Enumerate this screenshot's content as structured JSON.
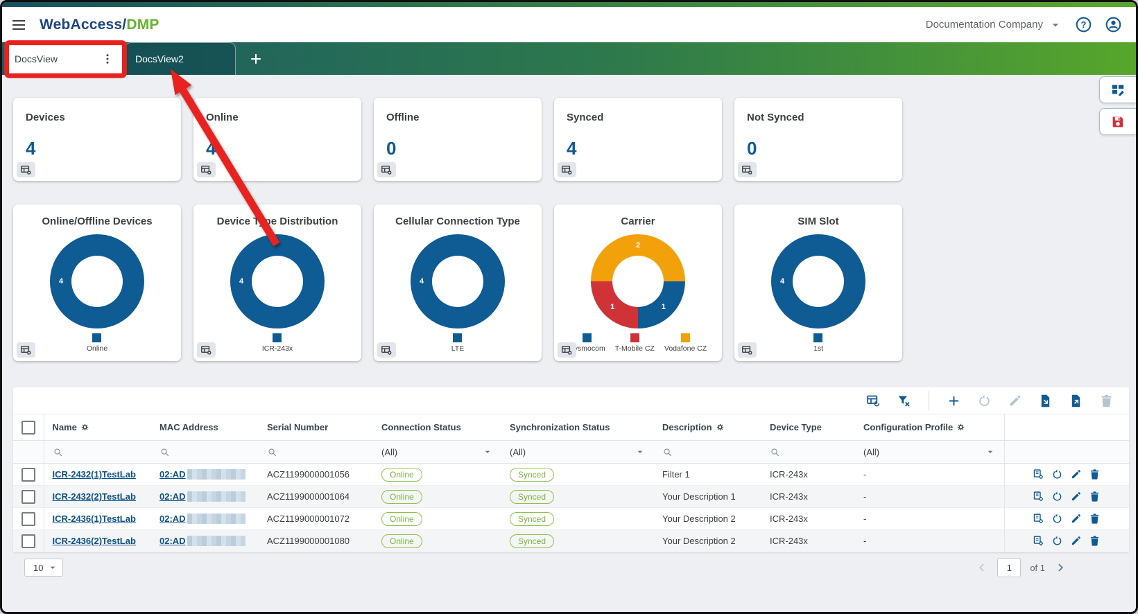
{
  "header": {
    "brand_blue": "WebAccess/",
    "brand_green": "DMP",
    "company": "Documentation Company"
  },
  "tabs": [
    {
      "label": "DocsView"
    },
    {
      "label": "DocsView2"
    }
  ],
  "side_buttons": {
    "edit_dashboard_icon": "dashboard-edit",
    "save_dashboard_icon": "save-floppy"
  },
  "colors": {
    "accent_blue": "#0f5b94",
    "status_green": "#7cb342",
    "annotation_red": "#e8221f",
    "carrier_red": "#cf3338",
    "carrier_orange": "#f2a10b"
  },
  "stats": [
    {
      "label": "Devices",
      "value": "4"
    },
    {
      "label": "Online",
      "value": "4"
    },
    {
      "label": "Offline",
      "value": "0"
    },
    {
      "label": "Synced",
      "value": "4"
    },
    {
      "label": "Not Synced",
      "value": "0"
    }
  ],
  "charts": [
    {
      "type": "donut",
      "title": "Online/Offline Devices",
      "segments": [
        {
          "label": "Online",
          "value": 4,
          "color": "#0f5b94",
          "label_angle": 270
        }
      ]
    },
    {
      "type": "donut",
      "title": "Device Type Distribution",
      "segments": [
        {
          "label": "ICR-243x",
          "value": 4,
          "color": "#0f5b94",
          "label_angle": 270
        }
      ]
    },
    {
      "type": "donut",
      "title": "Cellular Connection Type",
      "segments": [
        {
          "label": "LTE",
          "value": 4,
          "color": "#0f5b94",
          "label_angle": 270
        }
      ]
    },
    {
      "type": "donut",
      "title": "Carrier",
      "start_deg": 270,
      "draw_order": [
        2,
        0,
        1
      ],
      "segments": [
        {
          "label": "Sysmocom",
          "value": 1,
          "color": "#0f5b94",
          "label_angle": 135
        },
        {
          "label": "T-Mobile CZ",
          "value": 1,
          "color": "#cf3338",
          "label_angle": 225
        },
        {
          "label": "Vodafone CZ",
          "value": 2,
          "color": "#f2a10b",
          "label_angle": 0
        }
      ]
    },
    {
      "type": "donut",
      "title": "SIM Slot",
      "segments": [
        {
          "label": "1st",
          "value": 4,
          "color": "#0f5b94",
          "label_angle": 270
        }
      ]
    }
  ],
  "table": {
    "toolbar_icons": [
      "table-refresh",
      "filter-clear",
      "add",
      "refresh",
      "edit",
      "import-file",
      "export-file",
      "delete"
    ],
    "filter_all": "(All)",
    "columns": [
      {
        "label": "Name",
        "gear": true
      },
      {
        "label": "MAC Address"
      },
      {
        "label": "Serial Number"
      },
      {
        "label": "Connection Status"
      },
      {
        "label": "Synchronization Status"
      },
      {
        "label": "Description",
        "gear": true
      },
      {
        "label": "Device Type"
      },
      {
        "label": "Configuration Profile",
        "gear": true
      }
    ],
    "row_action_icons": [
      "device-config",
      "restart",
      "edit",
      "delete"
    ],
    "rows": [
      {
        "name": "ICR-2432(1)TestLab",
        "mac_prefix": "02:AD",
        "serial": "ACZ1199000001056",
        "connection": "Online",
        "sync": "Synced",
        "description": "Filter 1",
        "device_type": "ICR-243x",
        "config_profile": "-"
      },
      {
        "name": "ICR-2432(2)TestLab",
        "mac_prefix": "02:AD",
        "serial": "ACZ1199000001064",
        "connection": "Online",
        "sync": "Synced",
        "description": "Your Description 1",
        "device_type": "ICR-243x",
        "config_profile": "-"
      },
      {
        "name": "ICR-2436(1)TestLab",
        "mac_prefix": "02:AD",
        "serial": "ACZ1199000001072",
        "connection": "Online",
        "sync": "Synced",
        "description": "Your Description 2",
        "device_type": "ICR-243x",
        "config_profile": "-"
      },
      {
        "name": "ICR-2436(2)TestLab",
        "mac_prefix": "02:AD",
        "serial": "ACZ1199000001080",
        "connection": "Online",
        "sync": "Synced",
        "description": "Your Description 2",
        "device_type": "ICR-243x",
        "config_profile": "-"
      }
    ],
    "pagination": {
      "rows_per_page": "10",
      "current_page": "1",
      "of_text": "of 1"
    }
  }
}
